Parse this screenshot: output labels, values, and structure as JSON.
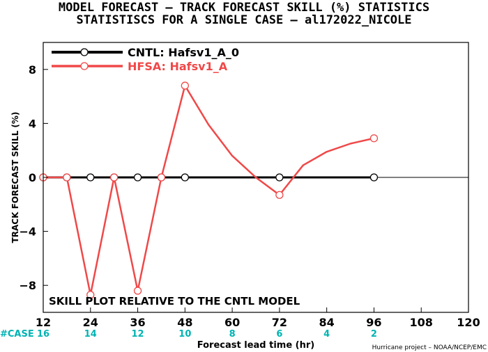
{
  "title_line1": "MODEL FORECAST – TRACK FORECAST SKILL (%) STATISTICS",
  "title_line2": "STATISTISCS FOR A SINGLE CASE – al172022_NICOLE",
  "annotation": "SKILL PLOT RELATIVE TO THE CNTL MODEL",
  "case_label": "#CASE",
  "credit": "Hurricane project – NOAA/NCEP/EMC",
  "colors": {
    "cntl": "#000000",
    "hfsa": "#f04848",
    "cases": "#00b3b3",
    "zero_line": "#000000"
  },
  "chart_data": {
    "type": "line",
    "xlabel": "Forecast lead time (hr)",
    "ylabel": "TRACK FORECAST SKILL (%)",
    "xlim": [
      12,
      120
    ],
    "ylim": [
      -10,
      10
    ],
    "xticks": [
      12,
      24,
      36,
      48,
      60,
      72,
      84,
      96,
      108,
      120
    ],
    "yticks": [
      -8,
      -4,
      0,
      4,
      8
    ],
    "cases": {
      "x": [
        12,
        24,
        36,
        48,
        60,
        72,
        84,
        96
      ],
      "counts": [
        "16",
        "14",
        "12",
        "10",
        "8",
        "6",
        "4",
        "2"
      ]
    },
    "legend_position": "top-left",
    "series": [
      {
        "name": "CNTL: Hafsv1_A_0",
        "color": "#000000",
        "x": [
          12,
          18,
          24,
          30,
          36,
          42,
          48,
          54,
          60,
          66,
          72,
          78,
          84,
          90,
          96
        ],
        "y": [
          0,
          0,
          0,
          0,
          0,
          0,
          0,
          0,
          0,
          0,
          0,
          0,
          0,
          0,
          0
        ],
        "markers_x": [
          12,
          18,
          24,
          30,
          36,
          42,
          48,
          72,
          96
        ]
      },
      {
        "name": "HFSA: Hafsv1_A",
        "color": "#f04848",
        "x": [
          12,
          18,
          24,
          30,
          36,
          42,
          48,
          54,
          60,
          66,
          72,
          78,
          84,
          90,
          96
        ],
        "y": [
          0,
          0,
          -8.7,
          0,
          -8.4,
          0,
          6.8,
          3.9,
          1.6,
          0,
          -1.3,
          0.9,
          1.9,
          2.5,
          2.9
        ],
        "markers_x": [
          12,
          18,
          24,
          30,
          36,
          42,
          48,
          72,
          96
        ]
      }
    ]
  }
}
